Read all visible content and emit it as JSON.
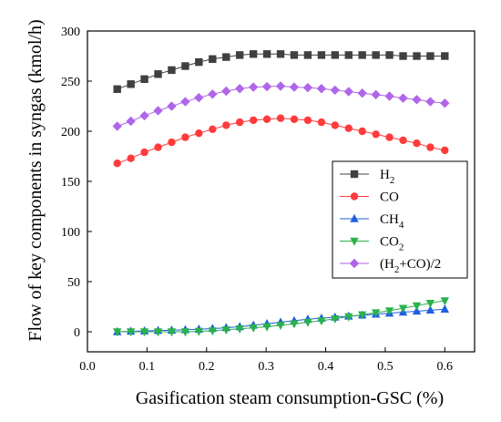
{
  "chart_data": {
    "type": "line",
    "title": "",
    "xlabel": "Gasification steam consumption-GSC (%)",
    "ylabel": "Flow of key components in syngas (kmol/h)",
    "xlim": [
      0.0,
      0.65
    ],
    "ylim": [
      -20,
      300
    ],
    "x_ticks": [
      "0.0",
      "0.1",
      "0.2",
      "0.3",
      "0.4",
      "0.5",
      "0.6"
    ],
    "y_ticks": [
      "0",
      "50",
      "100",
      "150",
      "200",
      "250",
      "300"
    ],
    "legend_position": "center-right",
    "x": [
      0.05,
      0.0729,
      0.0957,
      0.1186,
      0.1414,
      0.1643,
      0.1871,
      0.21,
      0.2329,
      0.2557,
      0.2786,
      0.3014,
      0.3243,
      0.3471,
      0.37,
      0.3929,
      0.4157,
      0.4386,
      0.4614,
      0.4843,
      0.5071,
      0.53,
      0.5529,
      0.5757,
      0.6
    ],
    "series": [
      {
        "name": "H2",
        "label_base": "H",
        "label_sub": "2",
        "label_tail": "",
        "color": "#404040",
        "marker": "square",
        "values": [
          242,
          247,
          252,
          257,
          261,
          265,
          269,
          272,
          274,
          276,
          277,
          277,
          277,
          276,
          276,
          276,
          276,
          276,
          276,
          276,
          276,
          275,
          275,
          275,
          275
        ]
      },
      {
        "name": "CO",
        "label_base": "CO",
        "label_sub": "",
        "label_tail": "",
        "color": "#ff3b3b",
        "marker": "circle",
        "values": [
          168,
          173,
          179,
          184,
          189,
          194,
          198,
          202,
          206,
          209,
          211,
          212,
          213,
          212,
          211,
          209,
          206,
          203,
          200,
          197,
          194,
          191,
          188,
          184,
          181
        ]
      },
      {
        "name": "CH4",
        "label_base": "CH",
        "label_sub": "4",
        "label_tail": "",
        "color": "#1f5fe0",
        "marker": "triangle-up",
        "values": [
          0,
          0.5,
          0.8,
          1.2,
          1.5,
          2,
          2.5,
          3.2,
          4,
          5,
          6.5,
          8,
          9.5,
          11,
          12.5,
          13.5,
          14.5,
          15.5,
          16.5,
          17.5,
          18.5,
          19.5,
          20.5,
          21.5,
          22.5
        ]
      },
      {
        "name": "CO2",
        "label_base": "CO",
        "label_sub": "2",
        "label_tail": "",
        "color": "#2bb24c",
        "marker": "triangle-down",
        "values": [
          0,
          0,
          0,
          0,
          0,
          0,
          0.5,
          1,
          2,
          3,
          4,
          5,
          6.5,
          8,
          9.5,
          11,
          13,
          15,
          17,
          19,
          21,
          23.5,
          26,
          28.5,
          31
        ]
      },
      {
        "name": "(H2+CO)/2",
        "label_base": "(H",
        "label_sub": "2",
        "label_tail": "+CO)/2",
        "color": "#b066e8",
        "marker": "diamond",
        "values": [
          205,
          210,
          215.5,
          220.5,
          225,
          229.5,
          233.5,
          237,
          240,
          242.5,
          244,
          244.5,
          245,
          244,
          243.5,
          242.5,
          241,
          239.5,
          238,
          236.5,
          235,
          233,
          231.5,
          229.5,
          228
        ]
      }
    ]
  }
}
